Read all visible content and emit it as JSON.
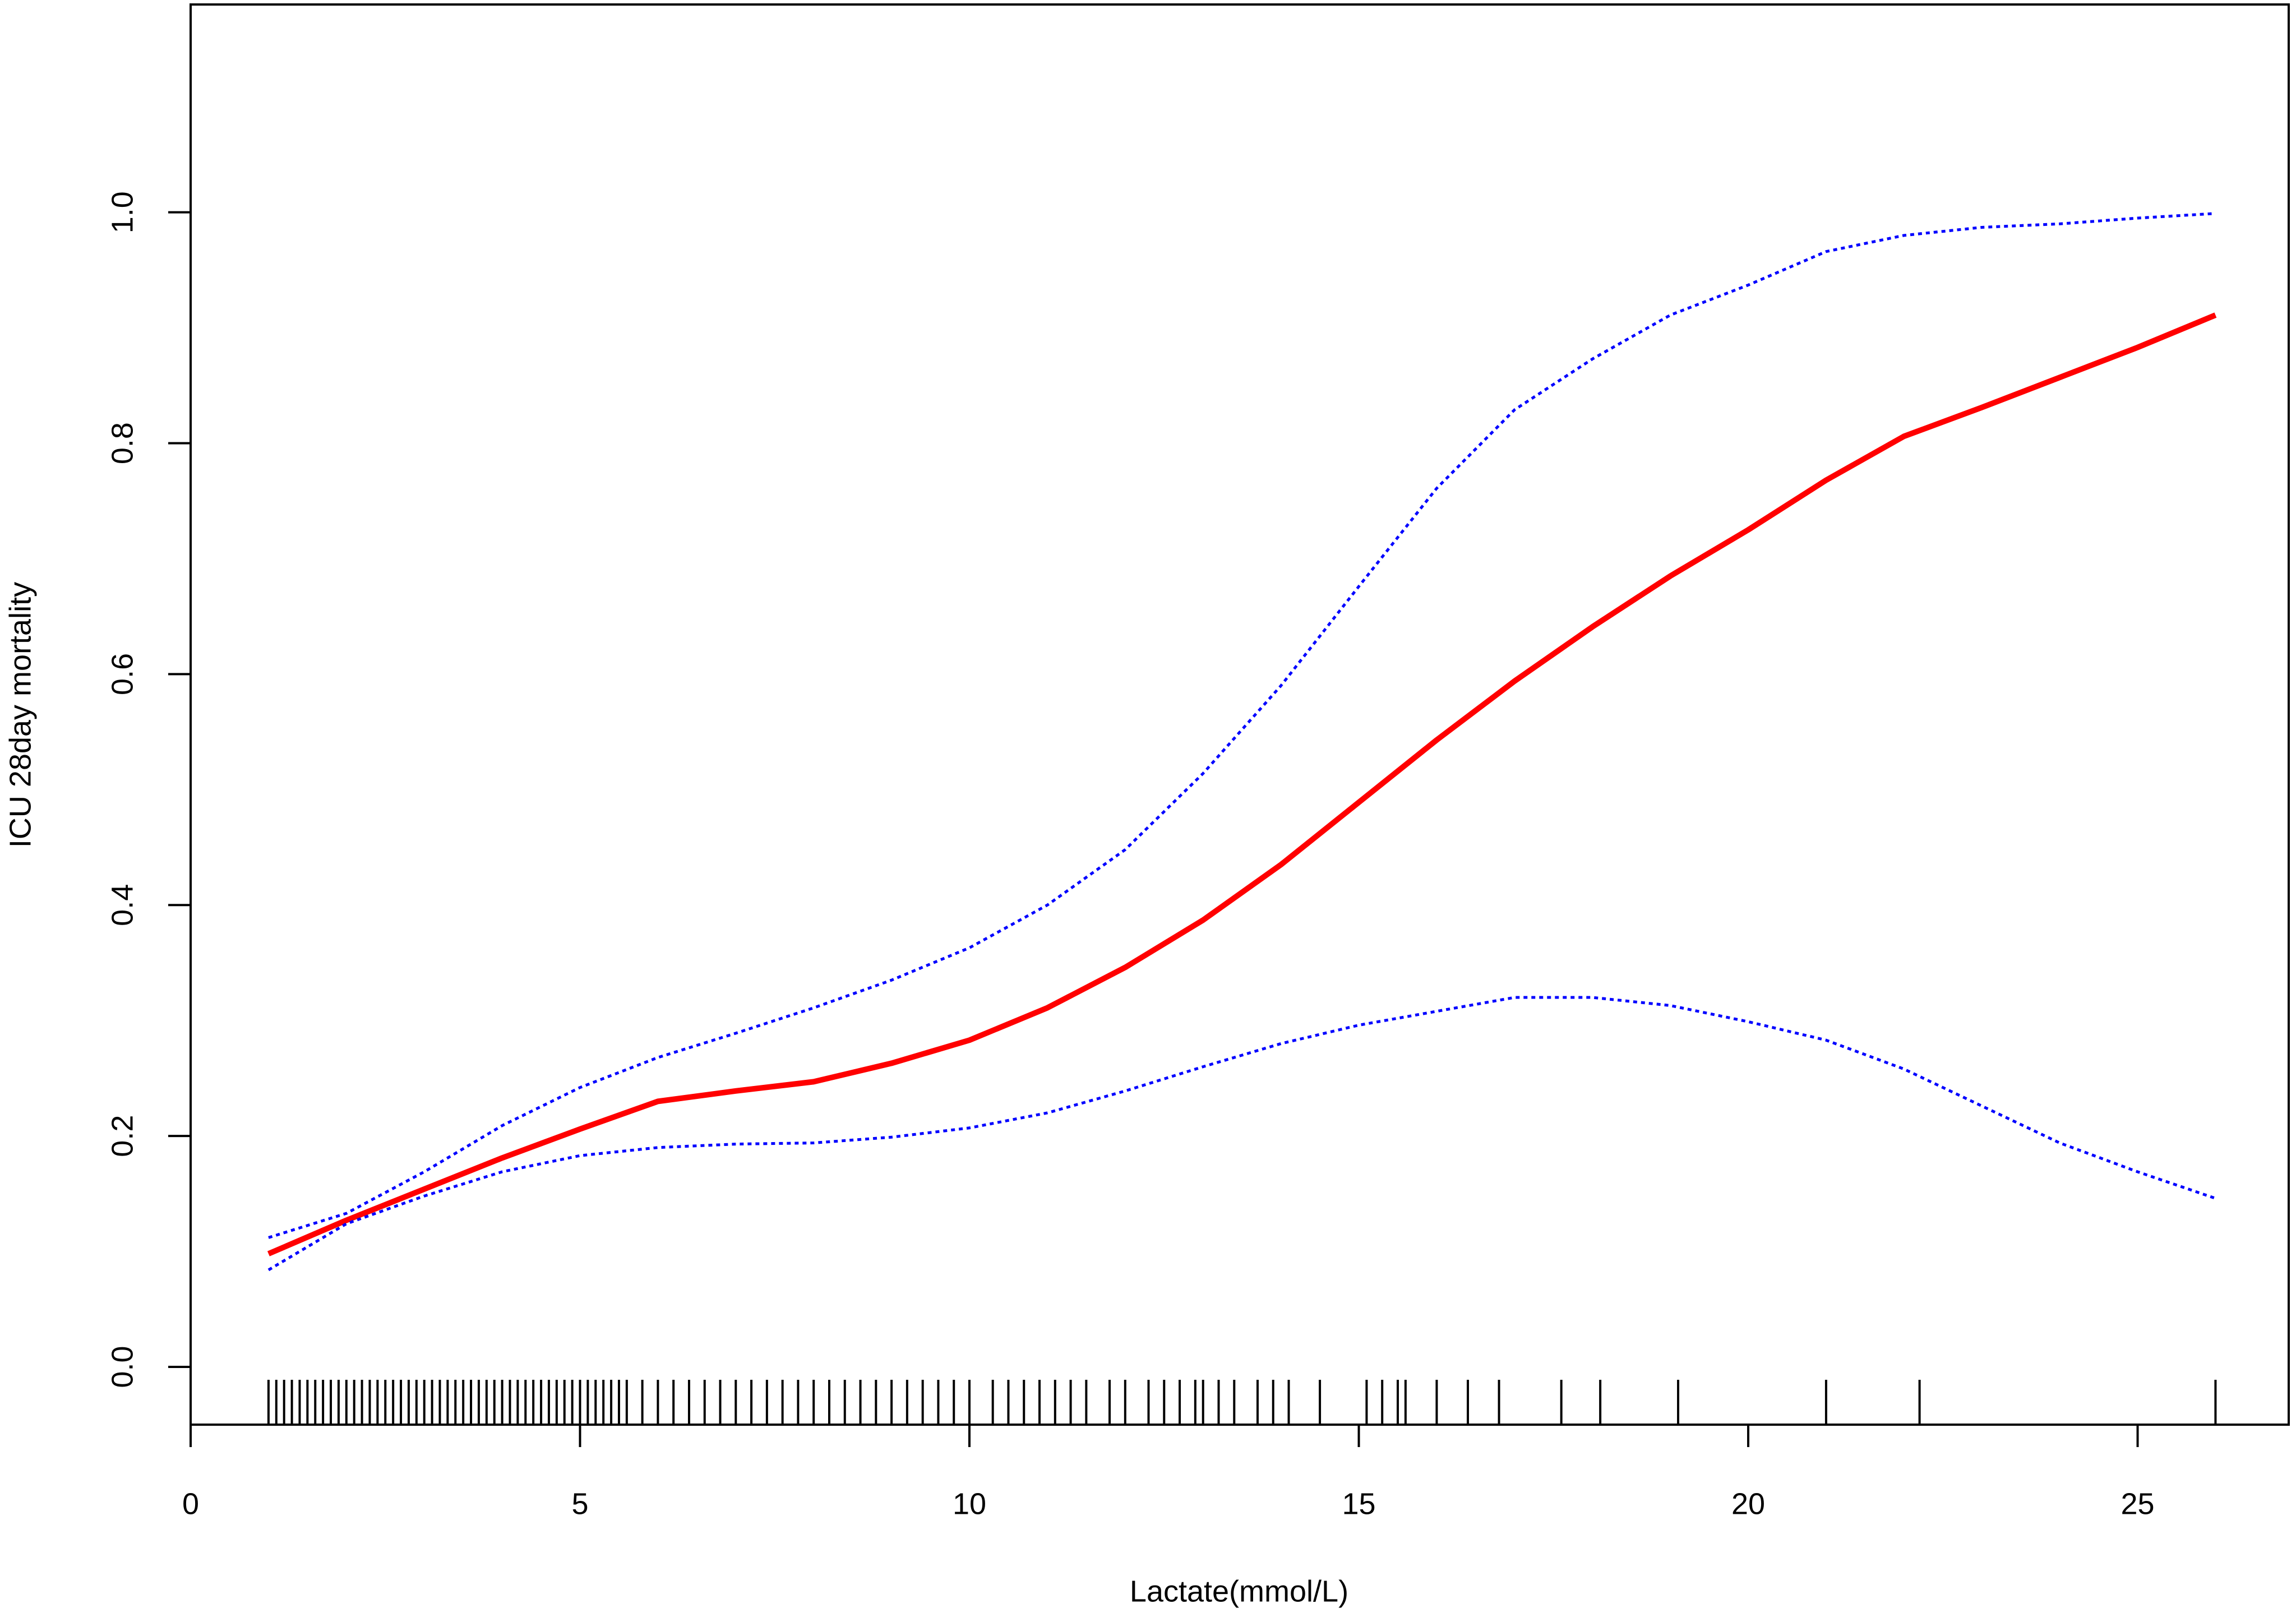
{
  "chart_data": {
    "type": "line",
    "x_label": "Lactate(mmol/L)",
    "y_label": "ICU 28day mortality",
    "x": [
      1,
      2,
      3,
      4,
      5,
      6,
      7,
      8,
      9,
      10,
      11,
      12,
      13,
      14,
      15,
      16,
      17,
      18,
      19,
      20,
      21,
      22,
      23,
      24,
      25,
      26
    ],
    "series": [
      {
        "color": "#ff0000",
        "linestyle": "solid",
        "values": [
          0.098,
          0.127,
          0.154,
          0.181,
          0.206,
          0.23,
          0.239,
          0.247,
          0.263,
          0.283,
          0.311,
          0.346,
          0.387,
          0.435,
          0.489,
          0.543,
          0.594,
          0.641,
          0.685,
          0.725,
          0.768,
          0.806,
          0.831,
          0.857,
          0.883,
          0.911
        ]
      },
      {
        "color": "#0000ff",
        "linestyle": "dotted",
        "values": [
          0.112,
          0.133,
          0.169,
          0.209,
          0.242,
          0.268,
          0.289,
          0.311,
          0.335,
          0.363,
          0.4,
          0.448,
          0.514,
          0.59,
          0.676,
          0.761,
          0.829,
          0.873,
          0.911,
          0.937,
          0.966,
          0.98,
          0.987,
          0.99,
          0.995,
          0.999
        ]
      },
      {
        "color": "#0000ff",
        "linestyle": "dotted",
        "values": [
          0.084,
          0.124,
          0.148,
          0.169,
          0.183,
          0.19,
          0.193,
          0.194,
          0.199,
          0.207,
          0.22,
          0.239,
          0.26,
          0.28,
          0.296,
          0.308,
          0.32,
          0.32,
          0.313,
          0.299,
          0.283,
          0.258,
          0.226,
          0.194,
          0.169,
          0.146
        ]
      }
    ],
    "rug": [
      1.0,
      1.1,
      1.2,
      1.3,
      1.4,
      1.5,
      1.6,
      1.7,
      1.8,
      1.9,
      2.0,
      2.1,
      2.2,
      2.3,
      2.4,
      2.5,
      2.6,
      2.7,
      2.8,
      2.9,
      3.0,
      3.1,
      3.2,
      3.3,
      3.4,
      3.5,
      3.6,
      3.7,
      3.8,
      3.9,
      4.0,
      4.1,
      4.2,
      4.3,
      4.4,
      4.5,
      4.6,
      4.7,
      4.8,
      4.9,
      5.0,
      5.1,
      5.2,
      5.3,
      5.4,
      5.5,
      5.6,
      5.8,
      6.0,
      6.2,
      6.4,
      6.6,
      6.8,
      7.0,
      7.2,
      7.4,
      7.6,
      7.8,
      8.0,
      8.2,
      8.4,
      8.6,
      8.8,
      9.0,
      9.2,
      9.4,
      9.6,
      9.8,
      10.0,
      10.3,
      10.5,
      10.7,
      10.9,
      11.1,
      11.3,
      11.5,
      11.8,
      12.0,
      12.3,
      12.5,
      12.7,
      12.9,
      13.0,
      13.2,
      13.4,
      13.7,
      13.9,
      14.1,
      14.5,
      15.1,
      15.3,
      15.5,
      15.6,
      16.0,
      16.4,
      16.8,
      17.6,
      18.1,
      19.1,
      21.0,
      22.2,
      26.0
    ],
    "rug_color": "#000000",
    "xlim": [
      0,
      26.94
    ],
    "ylim": [
      -0.05,
      1.18
    ],
    "xticks": [
      0,
      5,
      10,
      15,
      20,
      25
    ],
    "yticks": [
      {
        "value": 0,
        "label": "0.0"
      },
      0.2,
      0.4,
      0.6,
      0.8,
      {
        "value": 1,
        "label": "1.0"
      }
    ],
    "grid": false
  }
}
